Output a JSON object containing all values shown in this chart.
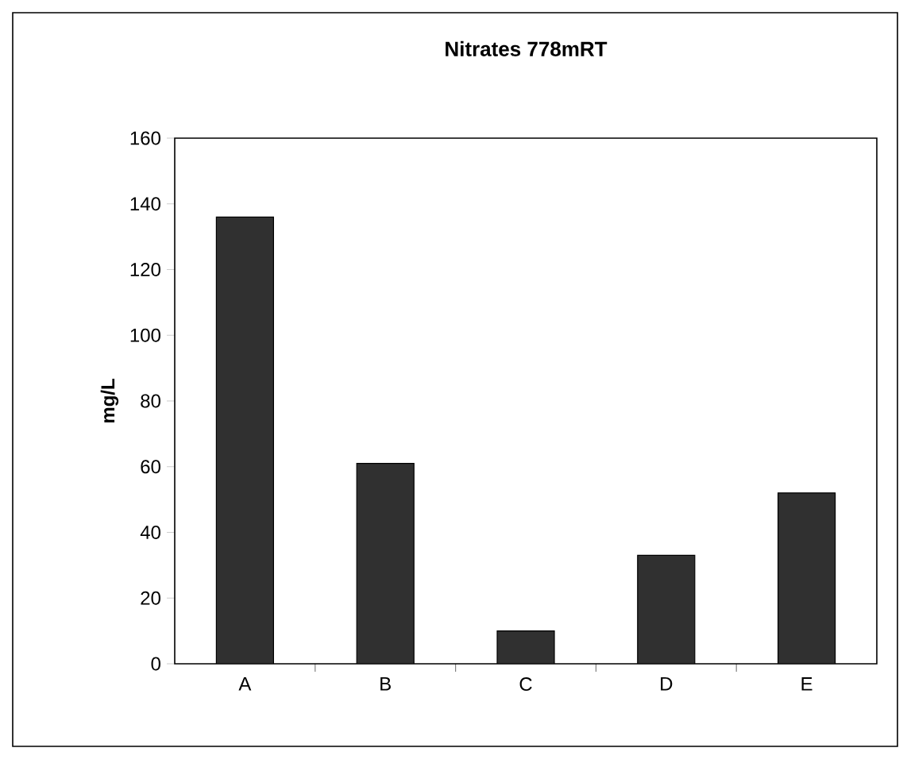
{
  "chart_data": {
    "type": "bar",
    "title": "Nitrates 778mRT",
    "ylabel": "mg/L",
    "categories": [
      "A",
      "B",
      "C",
      "D",
      "E"
    ],
    "values": [
      136,
      61,
      10,
      33,
      52
    ],
    "color": "#303030",
    "ylim": [
      0,
      160
    ],
    "yticks": [
      0,
      20,
      40,
      60,
      80,
      100,
      120,
      140,
      160
    ]
  }
}
